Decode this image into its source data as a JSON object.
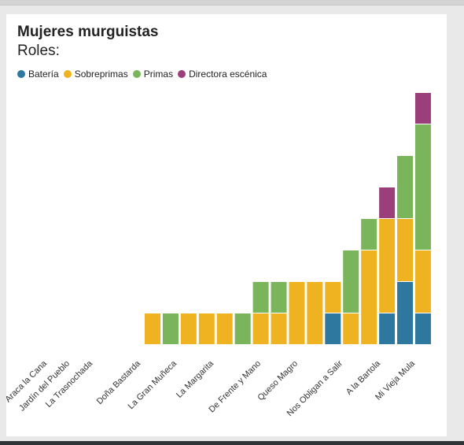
{
  "chart_data": {
    "type": "bar",
    "stacked": true,
    "title": "Mujeres murguistas",
    "subtitle": "Roles:",
    "categories": [
      "Araca la Cana",
      "Jardín del Pueblo",
      "La Trasnochada",
      "Doña Bastarda",
      "La Gran Muñeca",
      "La Margarita",
      "De Frente y Mano",
      "Queso Magro",
      "Nos Obligan a Salir",
      "A la Bartola",
      "Mi Vieja Mula"
    ],
    "bar_groups": [
      [],
      [],
      [],
      [
        {
          "Sobreprimas": 1
        },
        {
          "Primas": 1
        }
      ],
      [
        {
          "Sobreprimas": 1
        },
        {
          "Sobreprimas": 1
        }
      ],
      [
        {
          "Sobreprimas": 1
        },
        {
          "Primas": 1
        }
      ],
      [
        {
          "Sobreprimas": 1,
          "Primas": 1
        },
        {
          "Sobreprimas": 1,
          "Primas": 1
        }
      ],
      [
        {
          "Sobreprimas": 2
        },
        {
          "Sobreprimas": 2
        }
      ],
      [
        {
          "Batería": 1,
          "Sobreprimas": 1
        },
        {
          "Sobreprimas": 1,
          "Primas": 2
        }
      ],
      [
        {
          "Sobreprimas": 3,
          "Primas": 1
        },
        {
          "Batería": 1,
          "Sobreprimas": 3,
          "Directora escénica": 1
        }
      ],
      [
        {
          "Batería": 2,
          "Sobreprimas": 2,
          "Primas": 2
        },
        {
          "Batería": 1,
          "Sobreprimas": 2,
          "Primas": 4,
          "Directora escénica": 1
        }
      ]
    ],
    "series": [
      {
        "name": "Batería",
        "color": "#2e78a0"
      },
      {
        "name": "Sobreprimas",
        "color": "#efb321"
      },
      {
        "name": "Primas",
        "color": "#7ab55c"
      },
      {
        "name": "Directora escénica",
        "color": "#9a3f7a"
      }
    ],
    "legend_position": "top-left",
    "grid": false
  }
}
